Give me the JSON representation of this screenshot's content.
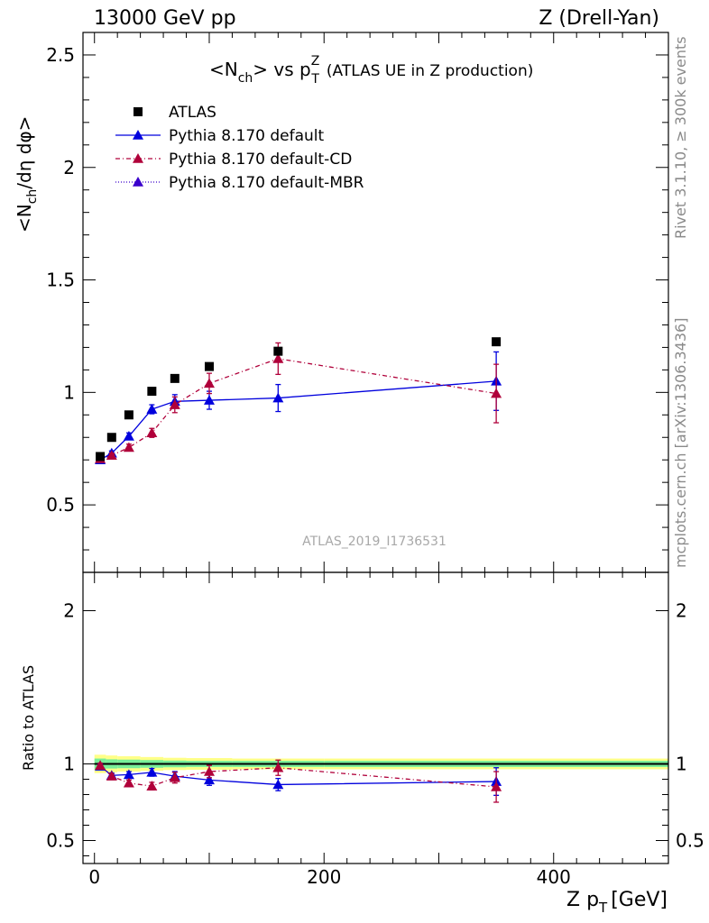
{
  "header": {
    "left": "13000 GeV pp",
    "right": "Z (Drell-Yan)"
  },
  "side_labels": {
    "upper": "Rivet 3.1.10, ≥ 300k events",
    "lower": "mcplots.cern.ch [arXiv:1306.3436]"
  },
  "watermark": "ATLAS_2019_I1736531",
  "chart_data": [
    {
      "type": "scatter",
      "title": {
        "pre": "<N",
        "sub1": "ch",
        "mid": "> vs p",
        "sup": "Z",
        "sub2": "T",
        "post": "(ATLAS UE in Z production)"
      },
      "ylabel": "<N_ch/dη dφ>",
      "ylim": [
        0.2,
        2.6
      ],
      "xlim": [
        -10,
        500
      ],
      "yticks": [
        0.5,
        1,
        1.5,
        2,
        2.5
      ],
      "ytick_labels": [
        "0.5",
        "1",
        "1.5",
        "2",
        "2.5"
      ],
      "legend_position": "top-left",
      "series": [
        {
          "name": "ATLAS",
          "color": "#000000",
          "marker": "square",
          "x": [
            5,
            15,
            30,
            50,
            70,
            100,
            160,
            350
          ],
          "y": [
            0.715,
            0.8,
            0.9,
            1.005,
            1.062,
            1.115,
            1.183,
            1.225
          ],
          "err": [
            0,
            0,
            0,
            0,
            0,
            0,
            0,
            0
          ]
        },
        {
          "name": "Pythia 8.170 default",
          "color": "#0000dd",
          "marker": "triangle",
          "dash": "",
          "x": [
            5,
            15,
            30,
            50,
            70,
            100,
            160,
            350
          ],
          "y": [
            0.7,
            0.73,
            0.805,
            0.925,
            0.96,
            0.965,
            0.975,
            1.05
          ],
          "err": [
            0.01,
            0.01,
            0.015,
            0.02,
            0.03,
            0.04,
            0.06,
            0.13
          ]
        },
        {
          "name": "Pythia 8.170 default-CD",
          "color": "#b0003a",
          "marker": "triangle",
          "dash": "5,3,1,3",
          "x": [
            5,
            15,
            30,
            50,
            70,
            100,
            160,
            350
          ],
          "y": [
            0.705,
            0.72,
            0.755,
            0.82,
            0.945,
            1.04,
            1.15,
            0.995
          ],
          "err": [
            0.01,
            0.01,
            0.015,
            0.02,
            0.035,
            0.045,
            0.07,
            0.13
          ]
        },
        {
          "name": "Pythia 8.170 default-MBR",
          "color": "#3a00cc",
          "marker": "triangle",
          "dash": "1,2",
          "x": [],
          "y": [],
          "err": []
        }
      ]
    },
    {
      "type": "scatter",
      "ylabel": "Ratio to ATLAS",
      "xlabel": "Z p_T [GeV]",
      "ylim": [
        0.35,
        2.25
      ],
      "xlim": [
        -10,
        500
      ],
      "yticks": [
        0.5,
        1,
        2
      ],
      "ytick_labels": [
        "0.5",
        "1",
        "2"
      ],
      "xticks": [
        0,
        200,
        400
      ],
      "xtick_labels": [
        "0",
        "200",
        "400"
      ],
      "bands": {
        "x_edges": [
          0,
          10,
          20,
          40,
          60,
          80,
          120,
          200,
          500
        ],
        "yellow_halfwidth": [
          0.06,
          0.055,
          0.05,
          0.045,
          0.04,
          0.038,
          0.035,
          0.035
        ],
        "green_halfwidth": [
          0.035,
          0.03,
          0.028,
          0.025,
          0.022,
          0.02,
          0.02,
          0.02
        ],
        "yellow_color": "#ffff88",
        "green_color": "#77ee99"
      },
      "series": [
        {
          "name": "Pythia 8.170 default",
          "color": "#0000dd",
          "dash": "",
          "x": [
            5,
            15,
            30,
            50,
            70,
            100,
            160,
            350
          ],
          "y": [
            0.985,
            0.925,
            0.93,
            0.945,
            0.92,
            0.895,
            0.865,
            0.885
          ],
          "err": [
            0.015,
            0.015,
            0.02,
            0.025,
            0.03,
            0.035,
            0.04,
            0.09
          ]
        },
        {
          "name": "Pythia 8.170 default-CD",
          "color": "#b0003a",
          "dash": "5,3,1,3",
          "x": [
            5,
            15,
            30,
            50,
            70,
            100,
            160,
            350
          ],
          "y": [
            0.99,
            0.92,
            0.875,
            0.855,
            0.91,
            0.95,
            0.975,
            0.85
          ],
          "err": [
            0.015,
            0.015,
            0.02,
            0.025,
            0.035,
            0.04,
            0.05,
            0.1
          ]
        }
      ]
    }
  ]
}
